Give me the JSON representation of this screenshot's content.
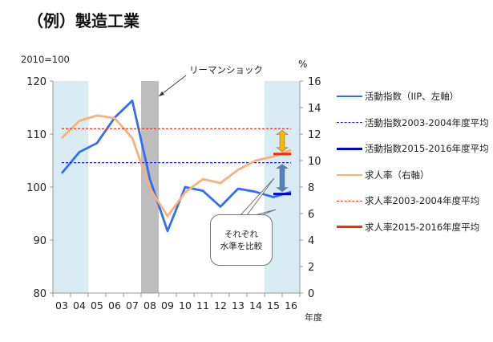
{
  "title": "（例）製造工業",
  "chart_data": {
    "type": "line",
    "title": "（例）製造工業",
    "categories": [
      "03",
      "04",
      "05",
      "06",
      "07",
      "08",
      "09",
      "10",
      "11",
      "12",
      "13",
      "14",
      "15",
      "16"
    ],
    "xlabel": "年度",
    "ylabel_left": "2010=100",
    "ylabel_right": "%",
    "ylim_left": [
      80,
      120
    ],
    "ylim_right": [
      0,
      16
    ],
    "left_ticks": [
      "80",
      "90",
      "100",
      "110",
      "120"
    ],
    "right_ticks": [
      "0",
      "2",
      "4",
      "6",
      "8",
      "10",
      "12",
      "14",
      "16"
    ],
    "series": [
      {
        "name": "活動指数（IIP、左軸）",
        "axis": "left",
        "color": "#2f6ff5",
        "style": "solid",
        "values": [
          102.6,
          106.6,
          108.3,
          113.1,
          116.3,
          101.5,
          91.7,
          100.0,
          99.3,
          96.3,
          99.7,
          99.1,
          98.1,
          99.1
        ]
      },
      {
        "name": "活動指数2003-2004年度平均",
        "axis": "left",
        "color": "#1a1aff",
        "style": "dashed",
        "value": 104.6,
        "range": [
          "03",
          "16"
        ]
      },
      {
        "name": "活動指数2015-2016年度平均",
        "axis": "left",
        "color": "#0000e0",
        "style": "thick",
        "value": 98.7,
        "range": [
          "15",
          "16"
        ]
      },
      {
        "name": "求人率（右軸）",
        "axis": "right",
        "color": "#fbb07a",
        "style": "solid",
        "values": [
          11.7,
          13.0,
          13.4,
          13.2,
          11.7,
          7.9,
          5.8,
          7.6,
          8.6,
          8.3,
          9.3,
          10.0,
          10.3,
          10.8
        ]
      },
      {
        "name": "求人率2003-2004年度平均",
        "axis": "right",
        "color": "#e83a1a",
        "style": "dashed",
        "value": 12.4,
        "range": [
          "03",
          "16"
        ]
      },
      {
        "name": "求人率2015-2016年度平均",
        "axis": "right",
        "color": "#ff2a00",
        "style": "thick",
        "value": 10.5,
        "range": [
          "15",
          "16"
        ]
      }
    ],
    "shaded_periods": [
      {
        "from": "03",
        "to": "04",
        "color": "#daecf3"
      },
      {
        "from": "15",
        "to": "16",
        "color": "#daecf3"
      },
      {
        "from": "08",
        "to": "08",
        "color": "#bdbdbd"
      }
    ],
    "annotations": {
      "lehman": "リーマンショック",
      "callout_line1": "それぞれ",
      "callout_line2": "水準を比較"
    },
    "legend_placement": "right"
  }
}
